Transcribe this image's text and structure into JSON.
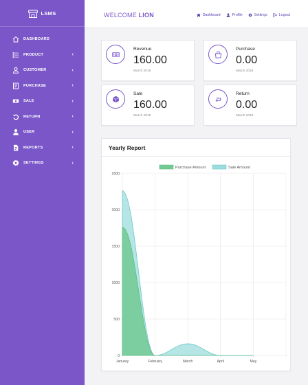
{
  "brand": {
    "name": "LSMS",
    "icon": "store-icon"
  },
  "sidebar": {
    "items": [
      {
        "label": "DASHBOARD",
        "icon": "home-icon",
        "chevron": ""
      },
      {
        "label": "PRODUCT",
        "icon": "list-icon",
        "chevron": "‹"
      },
      {
        "label": "CUSTOMER",
        "icon": "user-icon",
        "chevron": "‹"
      },
      {
        "label": "PURCHASE",
        "icon": "receipt-icon",
        "chevron": "‹"
      },
      {
        "label": "SALE",
        "icon": "cash-icon",
        "chevron": "‹"
      },
      {
        "label": "RETURN",
        "icon": "undo-icon",
        "chevron": "‹"
      },
      {
        "label": "USER",
        "icon": "user-icon",
        "chevron": "‹"
      },
      {
        "label": "REPORTS",
        "icon": "report-icon",
        "chevron": "‹"
      },
      {
        "label": "SETTINGS",
        "icon": "gear-icon",
        "chevron": "‹"
      }
    ]
  },
  "topbar": {
    "welcome_prefix": "WELCOME",
    "username": "LION",
    "links": [
      {
        "label": "Dashboard",
        "icon": "home-icon"
      },
      {
        "label": "Profile",
        "icon": "user-icon"
      },
      {
        "label": "Settings",
        "icon": "gear-icon"
      },
      {
        "label": "Logout",
        "icon": "logout-icon"
      }
    ]
  },
  "stats": [
    {
      "label": "Revenue",
      "value": "160.00",
      "date": "March 2019",
      "icon": "money-icon"
    },
    {
      "label": "Purchase",
      "value": "0.00",
      "date": "March 2019",
      "icon": "bag-icon"
    },
    {
      "label": "Sale",
      "value": "160.00",
      "date": "March 2019",
      "icon": "box-icon"
    },
    {
      "label": "Return",
      "value": "0.00",
      "date": "March 2019",
      "icon": "return-icon"
    }
  ],
  "colors": {
    "accent": "#7a56c9",
    "purchase": "#72c993",
    "sale": "#9cdcdc"
  },
  "report": {
    "title": "Yearly Report"
  },
  "chart_data": {
    "type": "area",
    "categories": [
      "January",
      "February",
      "March",
      "April",
      "May"
    ],
    "series": [
      {
        "name": "Purchase Amount",
        "values": [
          1760,
          0,
          0,
          0,
          0
        ]
      },
      {
        "name": "Sale Amount",
        "values": [
          2260,
          0,
          160,
          0,
          0
        ]
      }
    ],
    "ylim": [
      0,
      2500
    ],
    "yticks": [
      0,
      500,
      1000,
      1500,
      2000,
      2500
    ],
    "grid": true,
    "legend": "top"
  }
}
